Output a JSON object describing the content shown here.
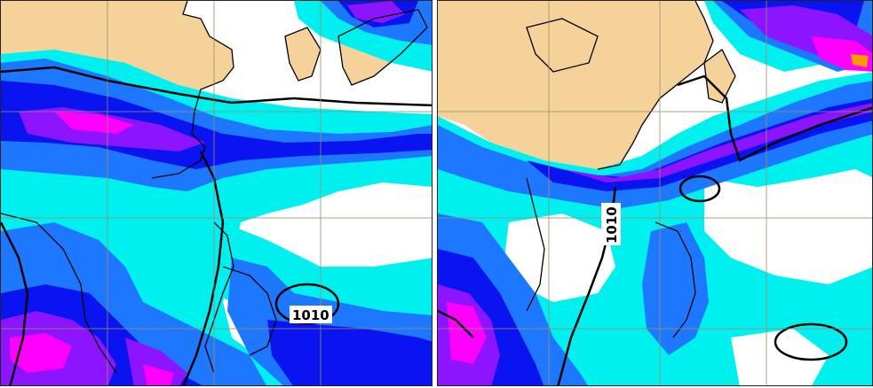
{
  "colors": {
    "land": "#f5d29a",
    "ocean": "#ffffff",
    "level1": "#00f0f0",
    "level2": "#1e78ff",
    "level3": "#0a14f0",
    "level4": "#8c14ff",
    "level5": "#ff00ff",
    "level6": "#ff9a00",
    "coast": "#000000",
    "isobar": "#000000",
    "grid": "#9a8a6a"
  },
  "icons": {
    "left_panel": "weather-map",
    "right_panel": "weather-map"
  },
  "left_panel": {
    "isobar_labels": [
      "1010"
    ]
  },
  "right_panel": {
    "isobar_labels": [
      "1010"
    ]
  }
}
